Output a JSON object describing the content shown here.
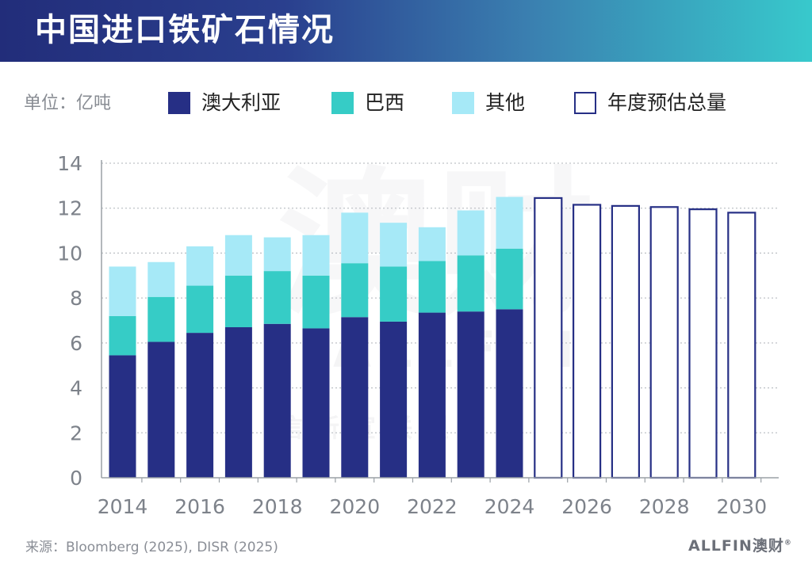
{
  "title": "中国进口铁矿石情况",
  "unit_label": "单位：亿吨",
  "legend": [
    {
      "label": "澳大利亚",
      "color": "#262f85"
    },
    {
      "label": "巴西",
      "color": "#36ccc6"
    },
    {
      "label": "其他",
      "color": "#a6e9f7"
    },
    {
      "label": "年度预估总量",
      "color": "#262f85"
    }
  ],
  "colors": {
    "australia": "#262f85",
    "brazil": "#36ccc6",
    "other": "#a6e9f7",
    "forecast_outline": "#262f85",
    "grid": "#bfc2c7",
    "axis": "#9aa0a6",
    "tick_text": "#7d828a"
  },
  "chart_data": {
    "type": "bar",
    "stacked": true,
    "title": "中国进口铁矿石情况",
    "ylabel": "单位：亿吨",
    "ylim": [
      0,
      14
    ],
    "yticks": [
      0,
      2,
      4,
      6,
      8,
      10,
      12,
      14
    ],
    "grid": true,
    "legend_position": "top",
    "x": [
      2014,
      2015,
      2016,
      2017,
      2018,
      2019,
      2020,
      2021,
      2022,
      2023,
      2024,
      2025,
      2026,
      2027,
      2028,
      2029,
      2030
    ],
    "xtick_labels": [
      "2014",
      "2016",
      "2018",
      "2020",
      "2022",
      "2024",
      "2026",
      "2028",
      "2030"
    ],
    "series": [
      {
        "name": "澳大利亚",
        "values": [
          5.45,
          6.05,
          6.45,
          6.7,
          6.85,
          6.65,
          7.15,
          6.95,
          7.35,
          7.4,
          7.5,
          null,
          null,
          null,
          null,
          null,
          null
        ]
      },
      {
        "name": "巴西",
        "values": [
          1.75,
          2.0,
          2.1,
          2.3,
          2.35,
          2.35,
          2.4,
          2.45,
          2.3,
          2.5,
          2.7,
          null,
          null,
          null,
          null,
          null,
          null
        ]
      },
      {
        "name": "其他",
        "values": [
          2.2,
          1.55,
          1.75,
          1.8,
          1.5,
          1.8,
          2.25,
          1.95,
          1.5,
          2.0,
          2.3,
          null,
          null,
          null,
          null,
          null,
          null
        ]
      },
      {
        "name": "年度预估总量",
        "values": [
          null,
          null,
          null,
          null,
          null,
          null,
          null,
          null,
          null,
          null,
          null,
          12.45,
          12.15,
          12.1,
          12.05,
          11.95,
          11.8
        ]
      }
    ]
  },
  "footer": {
    "source": "来源：Bloomberg (2025), DISR (2025)",
    "logo_text": "ALLFIN澳财",
    "logo_mark": "®"
  },
  "watermark": {
    "big": "澳财",
    "latin": "ALLFIN",
    "sub": "信新宣联盟下企业"
  }
}
